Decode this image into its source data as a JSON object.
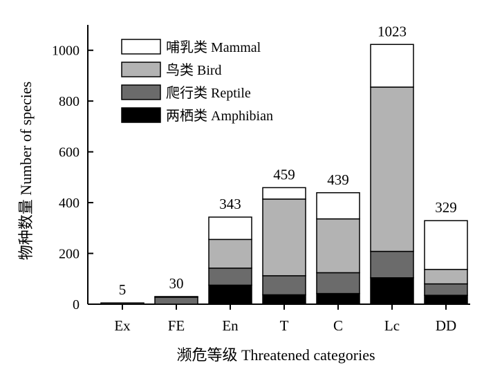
{
  "chart_data": {
    "type": "bar",
    "stacked": true,
    "categories": [
      "Ex",
      "FE",
      "En",
      "T",
      "C",
      "Lc",
      "DD"
    ],
    "series": [
      {
        "name": "两栖类 Amphibian",
        "color": "#000000",
        "values": [
          0,
          0,
          75,
          37,
          42,
          104,
          35
        ]
      },
      {
        "name": "爬行类 Reptile",
        "color": "#6b6b6b",
        "values": [
          5,
          28,
          67,
          75,
          82,
          104,
          45
        ]
      },
      {
        "name": "鸟类 Bird",
        "color": "#b3b3b3",
        "values": [
          0,
          2,
          113,
          302,
          212,
          647,
          57
        ]
      },
      {
        "name": "哺乳类 Mammal",
        "color": "#ffffff",
        "values": [
          0,
          0,
          88,
          45,
          103,
          168,
          192
        ]
      }
    ],
    "totals": [
      "5",
      "30",
      "343",
      "459",
      "439",
      "1023",
      "329"
    ],
    "yticks": [
      0,
      200,
      400,
      600,
      800,
      1000
    ],
    "ylim": [
      0,
      1100
    ],
    "xlabel": "濒危等级 Threatened categories",
    "ylabel": "物种数量 Number of species",
    "legend_position": "top-left",
    "grid": false
  }
}
